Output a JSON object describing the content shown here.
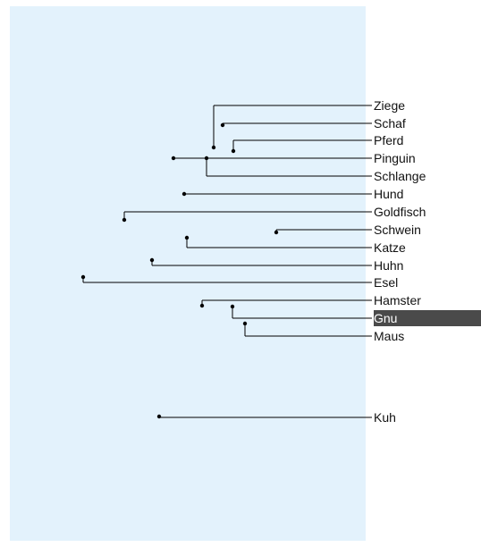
{
  "colors": {
    "panel": "#e3f2fc",
    "line": "#000000",
    "text": "#111111",
    "selected_bg": "#4a4a4a",
    "selected_text": "#ffffff"
  },
  "leaves": [
    {
      "id": "ziege",
      "label": "Ziege"
    },
    {
      "id": "schaf",
      "label": "Schaf"
    },
    {
      "id": "pferd",
      "label": "Pferd"
    },
    {
      "id": "pinguin",
      "label": "Pinguin"
    },
    {
      "id": "schlange",
      "label": "Schlange"
    },
    {
      "id": "hund",
      "label": "Hund"
    },
    {
      "id": "goldfisch",
      "label": "Goldfisch"
    },
    {
      "id": "schwein",
      "label": "Schwein"
    },
    {
      "id": "katze",
      "label": "Katze"
    },
    {
      "id": "huhn",
      "label": "Huhn"
    },
    {
      "id": "esel",
      "label": "Esel"
    },
    {
      "id": "hamster",
      "label": "Hamster"
    },
    {
      "id": "gnu",
      "label": "Gnu",
      "selected": true
    },
    {
      "id": "maus",
      "label": "Maus"
    },
    {
      "id": "kuh",
      "label": "Kuh"
    }
  ]
}
